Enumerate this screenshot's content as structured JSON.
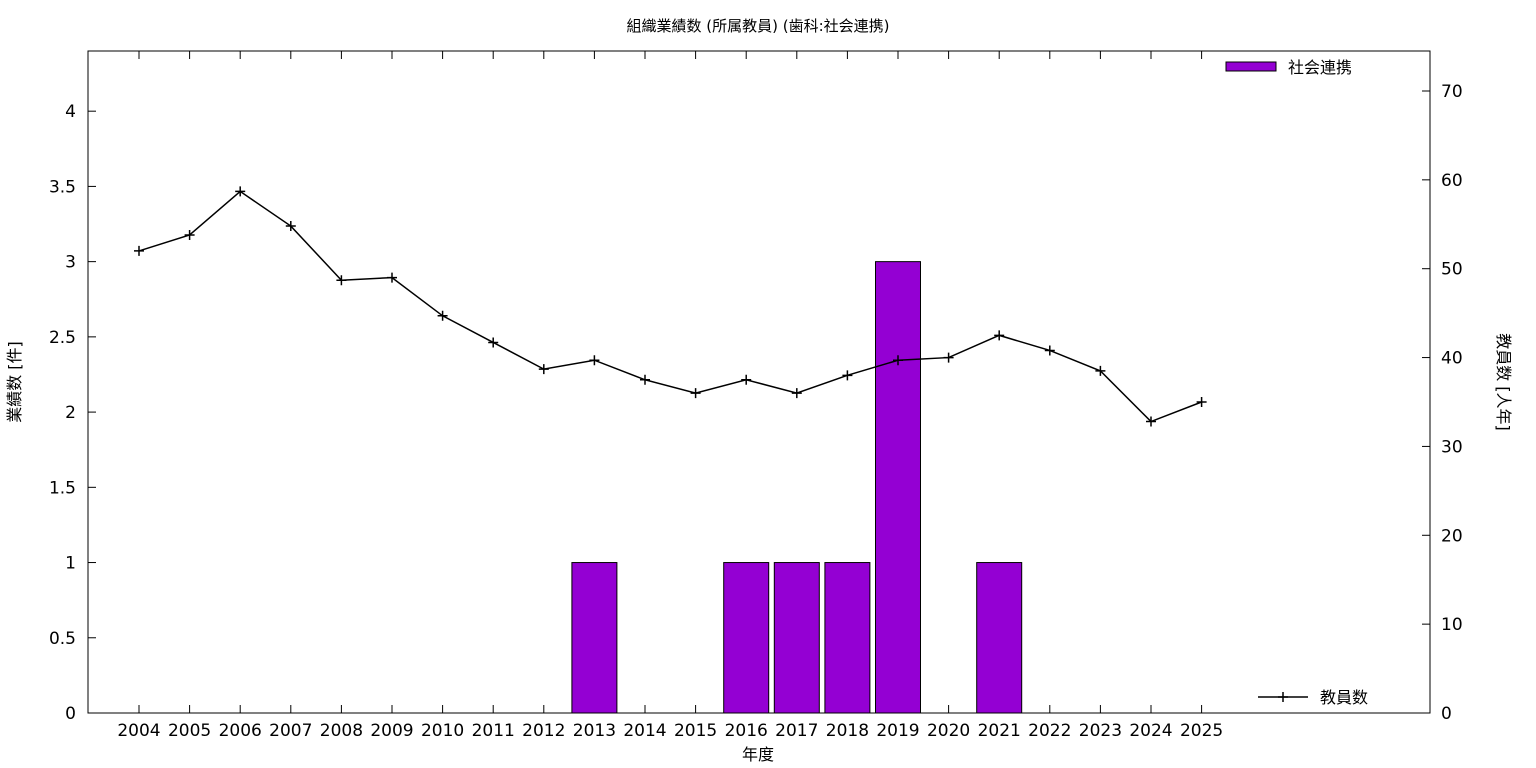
{
  "chart_data": {
    "type": "bar",
    "title": "組織業績数 (所属教員) (歯科:社会連携)",
    "xlabel": "年度",
    "ylabel": "業績数 [件]",
    "y2label": "教員数 [人年]",
    "categories": [
      "2004",
      "2005",
      "2006",
      "2007",
      "2008",
      "2009",
      "2010",
      "2011",
      "2012",
      "2013",
      "2014",
      "2015",
      "2016",
      "2017",
      "2018",
      "2019",
      "2020",
      "2021",
      "2022",
      "2023",
      "2024",
      "2025"
    ],
    "ylim": [
      0,
      4.4
    ],
    "yticks": [
      "0",
      "0.5",
      "1",
      "1.5",
      "2",
      "2.5",
      "3",
      "3.5",
      "4"
    ],
    "y2lim": [
      0,
      74.5
    ],
    "y2ticks": [
      "0",
      "10",
      "20",
      "30",
      "40",
      "50",
      "60",
      "70"
    ],
    "grid": false,
    "series": [
      {
        "name": "社会連携",
        "type": "bar",
        "axis": "left",
        "color": "#9400d3",
        "values": [
          0,
          0,
          0,
          0,
          0,
          0,
          0,
          0,
          0,
          1,
          0,
          0,
          1,
          1,
          1,
          3,
          0,
          1,
          0,
          0,
          0,
          0
        ]
      },
      {
        "name": "教員数",
        "type": "line",
        "axis": "right",
        "color": "#000000",
        "marker": "plus",
        "values": [
          52.0,
          53.8,
          58.7,
          54.8,
          48.7,
          49.0,
          44.7,
          41.7,
          38.7,
          39.7,
          37.5,
          36.0,
          37.5,
          36.0,
          38.0,
          39.7,
          40.0,
          42.5,
          40.8,
          38.5,
          32.8,
          35.0
        ]
      }
    ],
    "legend": [
      {
        "label": "社会連携",
        "position": "top-right"
      },
      {
        "label": "教員数",
        "position": "bottom-right"
      }
    ]
  }
}
